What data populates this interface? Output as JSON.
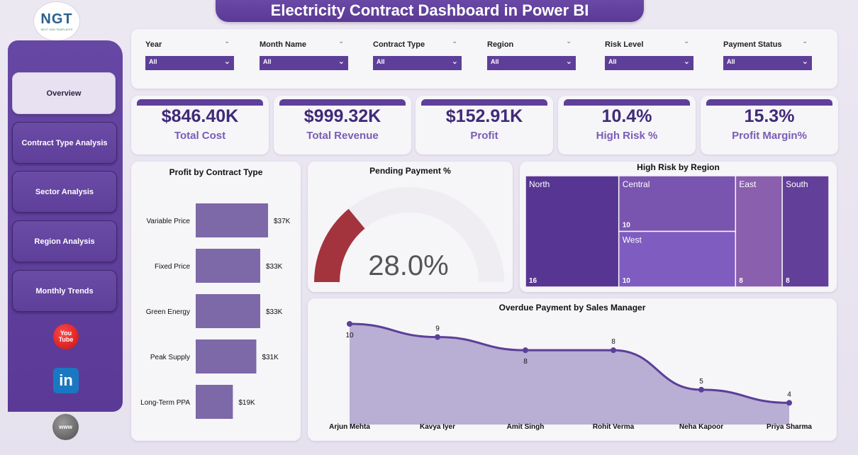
{
  "title": "Electricity Contract Dashboard in Power BI",
  "logo": {
    "text": "NGT",
    "subtext": "NEXT GEN TEMPLATES"
  },
  "nav": [
    {
      "label": "Overview",
      "active": true
    },
    {
      "label": "Contract Type Analysis",
      "active": false
    },
    {
      "label": "Sector Analysis",
      "active": false
    },
    {
      "label": "Region Analysis",
      "active": false
    },
    {
      "label": "Monthly Trends",
      "active": false
    }
  ],
  "social": {
    "youtube_l1": "You",
    "youtube_l2": "Tube",
    "linkedin": "in",
    "web": "www"
  },
  "filters": [
    {
      "label": "Year",
      "value": "All"
    },
    {
      "label": "Month Name",
      "value": "All"
    },
    {
      "label": "Contract Type",
      "value": "All"
    },
    {
      "label": "Region",
      "value": "All"
    },
    {
      "label": "Risk Level",
      "value": "All"
    },
    {
      "label": "Payment Status",
      "value": "All"
    }
  ],
  "kpis": [
    {
      "value": "$846.40K",
      "label": "Total Cost"
    },
    {
      "value": "$999.32K",
      "label": "Total Revenue"
    },
    {
      "value": "$152.91K",
      "label": "Profit"
    },
    {
      "value": "10.4%",
      "label": "High Risk %"
    },
    {
      "value": "15.3%",
      "label": "Profit Margin%"
    }
  ],
  "colors": {
    "accent": "#5e3f9a",
    "bar": "#7d68a8",
    "gauge": "#a3343d",
    "area": "#b3a6cf",
    "line": "#5b3f98"
  },
  "chart_data": [
    {
      "type": "bar",
      "title": "Profit by Contract Type",
      "categories": [
        "Variable Price",
        "Fixed Price",
        "Green Energy",
        "Peak Supply",
        "Long-Term PPA"
      ],
      "values": [
        37,
        33,
        33,
        31,
        19
      ],
      "value_labels": [
        "$37K",
        "$33K",
        "$33K",
        "$31K",
        "$19K"
      ],
      "orientation": "horizontal"
    },
    {
      "type": "gauge",
      "title": "Pending Payment %",
      "value": 28.0,
      "max": 100,
      "label": "28.0%"
    },
    {
      "type": "treemap",
      "title": "High Risk by Region",
      "items": [
        {
          "name": "North",
          "value": 16,
          "color": "#573693"
        },
        {
          "name": "Central",
          "value": 10,
          "color": "#7a55b0"
        },
        {
          "name": "West",
          "value": 10,
          "color": "#7f5cc0"
        },
        {
          "name": "East",
          "value": 8,
          "color": "#8a5fae"
        },
        {
          "name": "South",
          "value": 8,
          "color": "#623f98"
        }
      ]
    },
    {
      "type": "area",
      "title": "Overdue Payment by Sales Manager",
      "categories": [
        "Arjun Mehta",
        "Kavya Iyer",
        "Amit Singh",
        "Rohit Verma",
        "Neha Kapoor",
        "Priya Sharma"
      ],
      "values": [
        10,
        9,
        8,
        8,
        5,
        4
      ],
      "ylim": [
        3,
        10
      ]
    }
  ]
}
